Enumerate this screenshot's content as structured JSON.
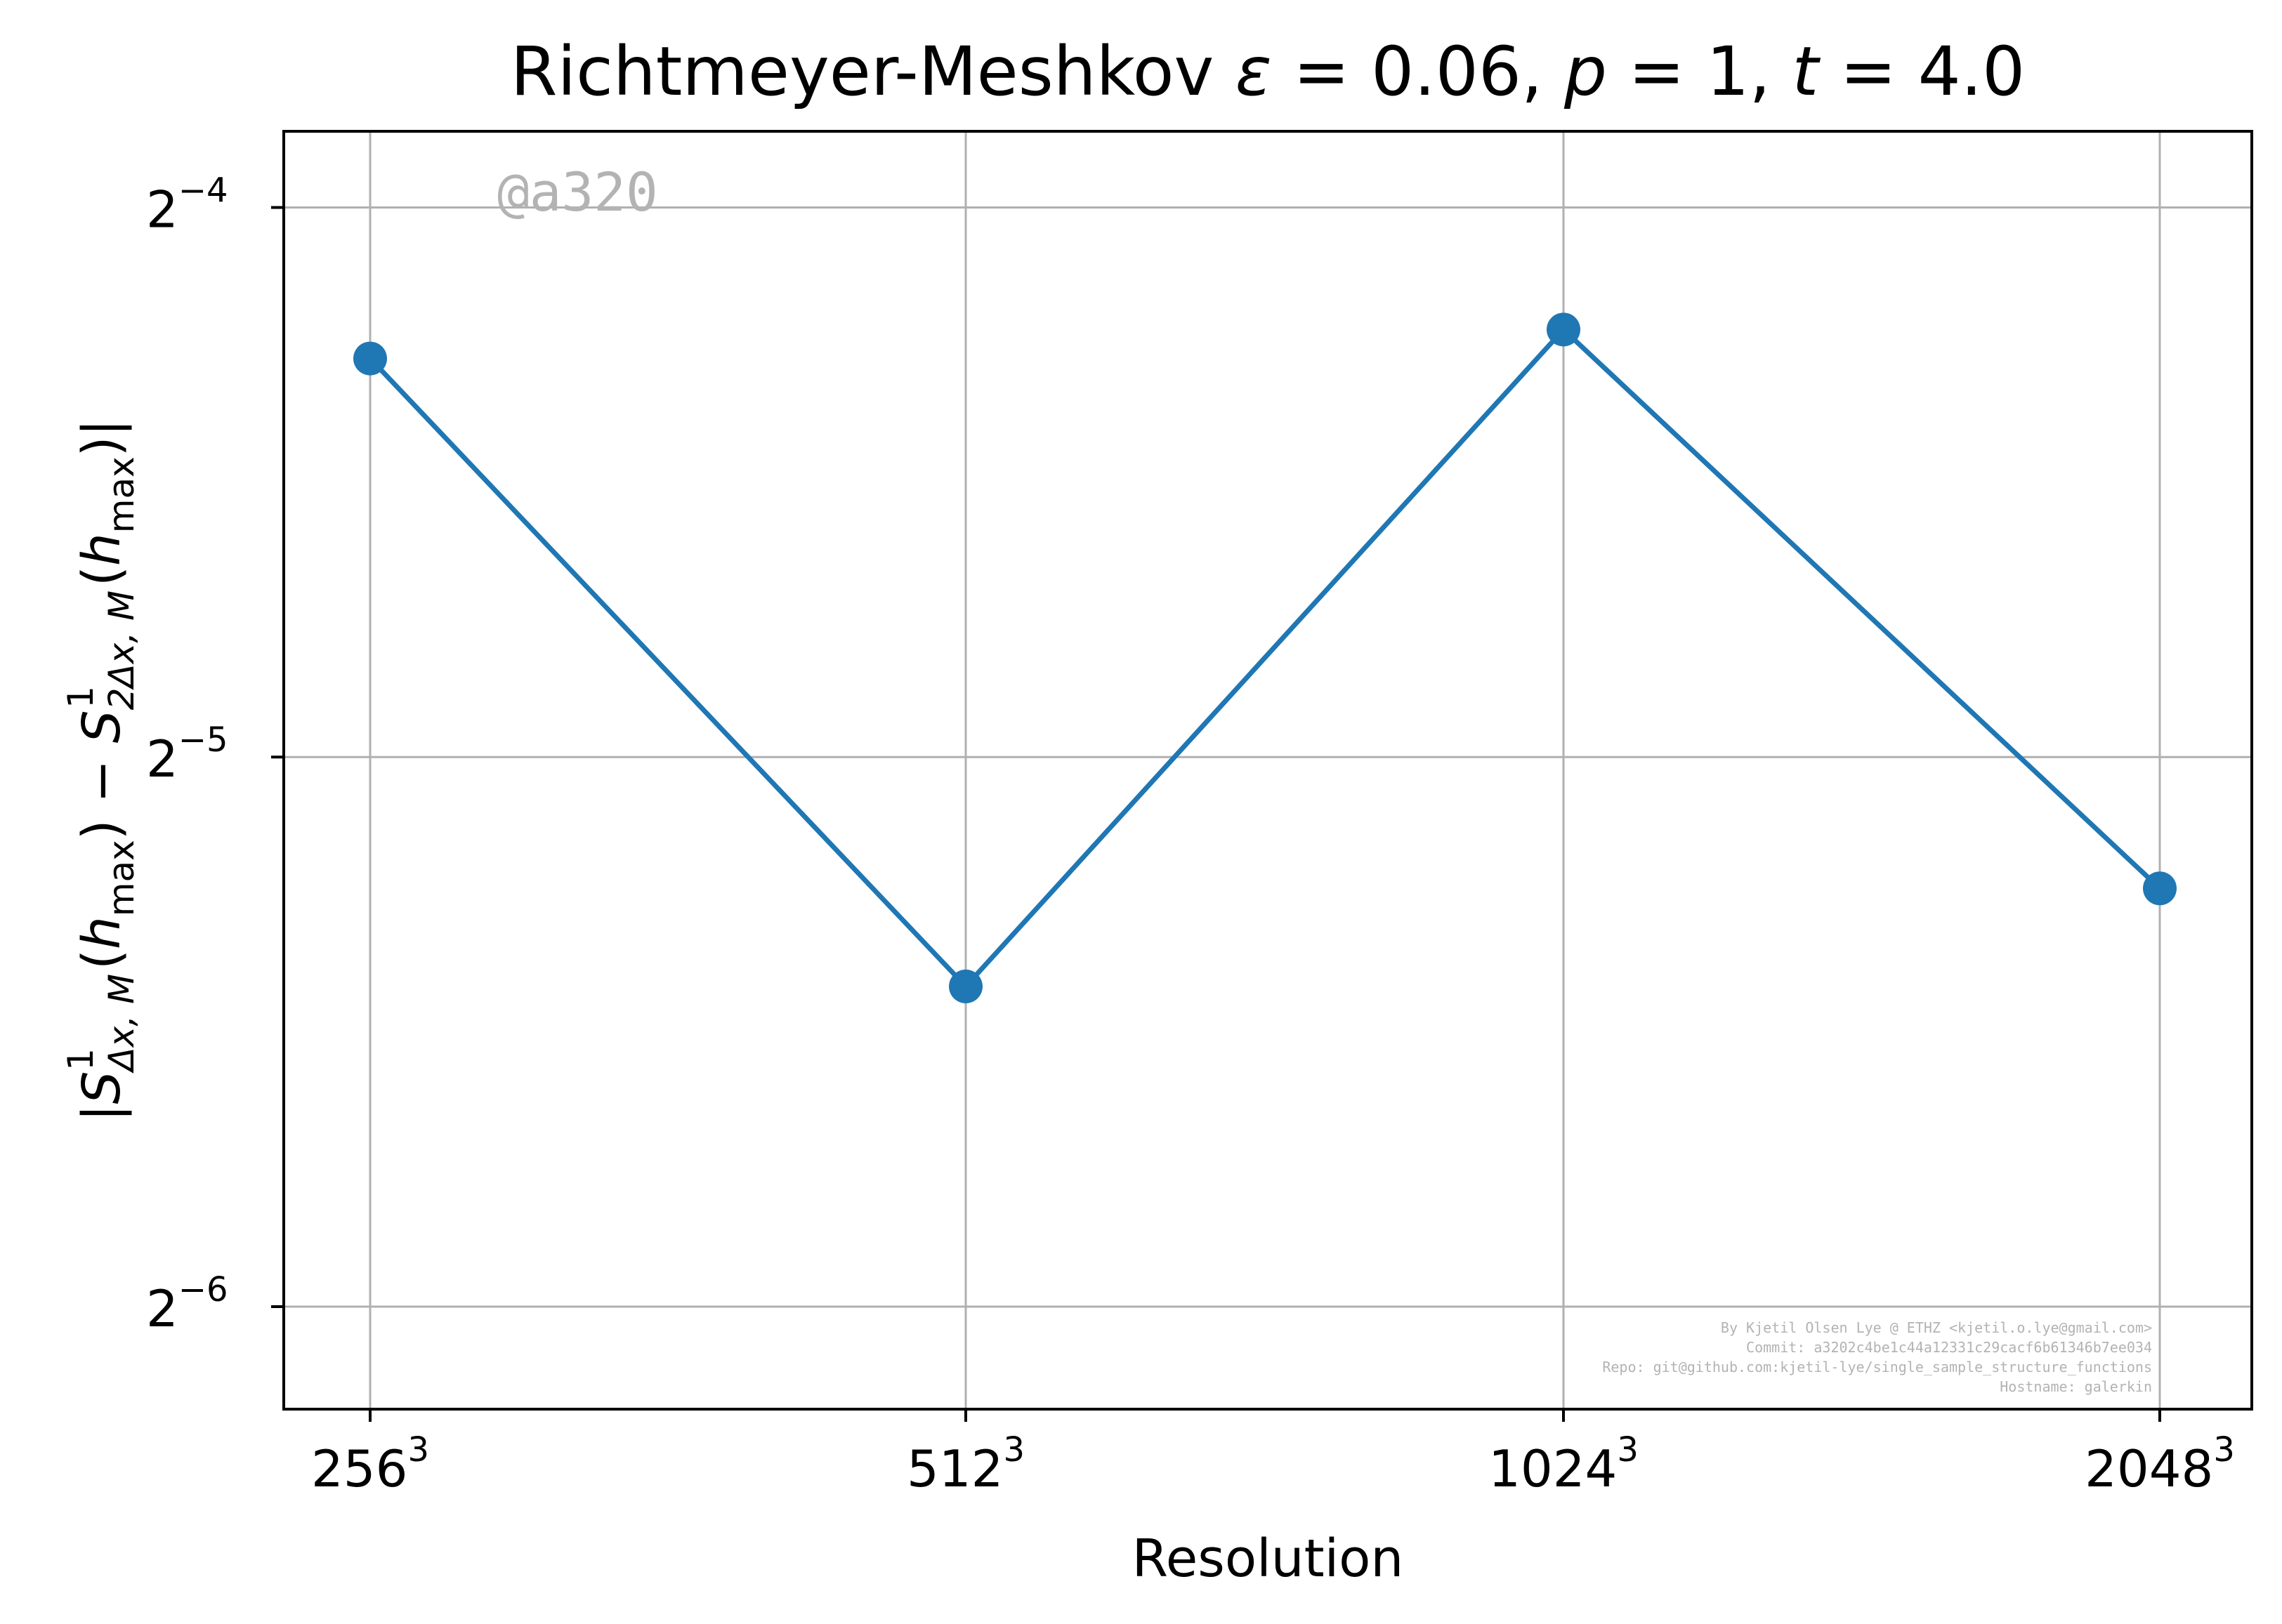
{
  "chart_data": {
    "type": "line",
    "title_parts": [
      {
        "text": "Richtmeyer-Meshkov ",
        "style": "normal"
      },
      {
        "text": "ε",
        "style": "italic"
      },
      {
        "text": " = 0.06, ",
        "style": "normal"
      },
      {
        "text": "p",
        "style": "italic"
      },
      {
        "text": " = 1, ",
        "style": "normal"
      },
      {
        "text": "t",
        "style": "italic"
      },
      {
        "text": " = 4.0",
        "style": "normal"
      }
    ],
    "xlabel": "Resolution",
    "ylabel_parts": [
      {
        "text": "|",
        "style": "normal",
        "shift": 0
      },
      {
        "text": "S",
        "style": "italic",
        "shift": 0
      },
      {
        "text": "Δx, M",
        "style": "italic-sub",
        "shift": 0
      },
      {
        "text": "1",
        "style": "sup",
        "shift": 0
      },
      {
        "text": "(",
        "style": "normal",
        "shift": 0
      },
      {
        "text": "h",
        "style": "italic",
        "shift": 0
      },
      {
        "text": "max",
        "style": "sub",
        "shift": 0
      },
      {
        "text": ") − ",
        "style": "normal",
        "shift": 0
      },
      {
        "text": "S",
        "style": "italic",
        "shift": 0
      },
      {
        "text": "2Δx, M",
        "style": "italic-sub",
        "shift": 0
      },
      {
        "text": "1",
        "style": "sup",
        "shift": 0
      },
      {
        "text": "(",
        "style": "normal",
        "shift": 0
      },
      {
        "text": "h",
        "style": "italic",
        "shift": 0
      },
      {
        "text": "max",
        "style": "sub",
        "shift": 0
      },
      {
        "text": ")|",
        "style": "normal",
        "shift": 0
      }
    ],
    "categories": [
      {
        "base": "256",
        "exp": "3"
      },
      {
        "base": "512",
        "exp": "3"
      },
      {
        "base": "1024",
        "exp": "3"
      },
      {
        "base": "2048",
        "exp": "3"
      }
    ],
    "x_scale": "log2",
    "y_scale": "log2",
    "y_ticks": [
      {
        "base": "2",
        "exp": "−4",
        "value": 0.0625
      },
      {
        "base": "2",
        "exp": "−5",
        "value": 0.03125
      },
      {
        "base": "2",
        "exp": "−6",
        "value": 0.015625
      }
    ],
    "ylim": [
      0.01373,
      0.0688
    ],
    "series": [
      {
        "values": [
          0.05166,
          0.0234,
          0.05358,
          0.02648
        ],
        "color": "#1f77b4"
      }
    ],
    "grid": true,
    "legend": "none",
    "annotations": {
      "watermark": "@a320",
      "metadata": [
        "By Kjetil Olsen Lye @ ETHZ <kjetil.o.lye@gmail.com>",
        "Commit: a3202c4be1c44a12331c29cacf6b61346b7ee034",
        "Repo: git@github.com:kjetil-lye/single_sample_structure_functions",
        "Hostname: galerkin"
      ]
    }
  }
}
